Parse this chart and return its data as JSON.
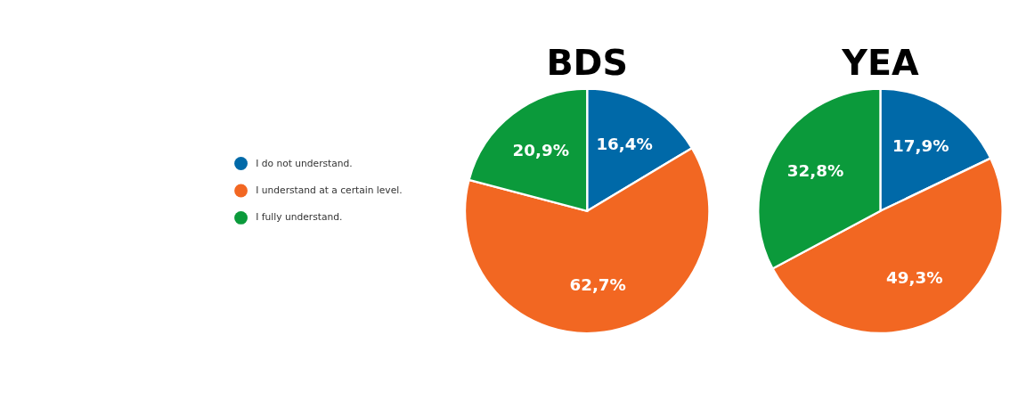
{
  "chart_data": [
    {
      "type": "pie",
      "title": "BDS",
      "categories": [
        "I do not understand.",
        "I understand at a certain level.",
        "I fully understand."
      ],
      "values": [
        16.4,
        62.7,
        20.9
      ],
      "colors": [
        "#0069a8",
        "#f26722",
        "#0b9a3b"
      ],
      "value_labels": [
        "16,4%",
        "62,7%",
        "20,9%"
      ],
      "legend": "left"
    },
    {
      "type": "pie",
      "title": "YEA",
      "categories": [
        null,
        null,
        null
      ],
      "values": [
        17.9,
        49.3,
        32.8
      ],
      "colors": [
        "#0069a8",
        "#f26722",
        "#0b9a3b"
      ],
      "value_labels": [
        "17,9%",
        "49,3%",
        "32,8%"
      ]
    }
  ]
}
